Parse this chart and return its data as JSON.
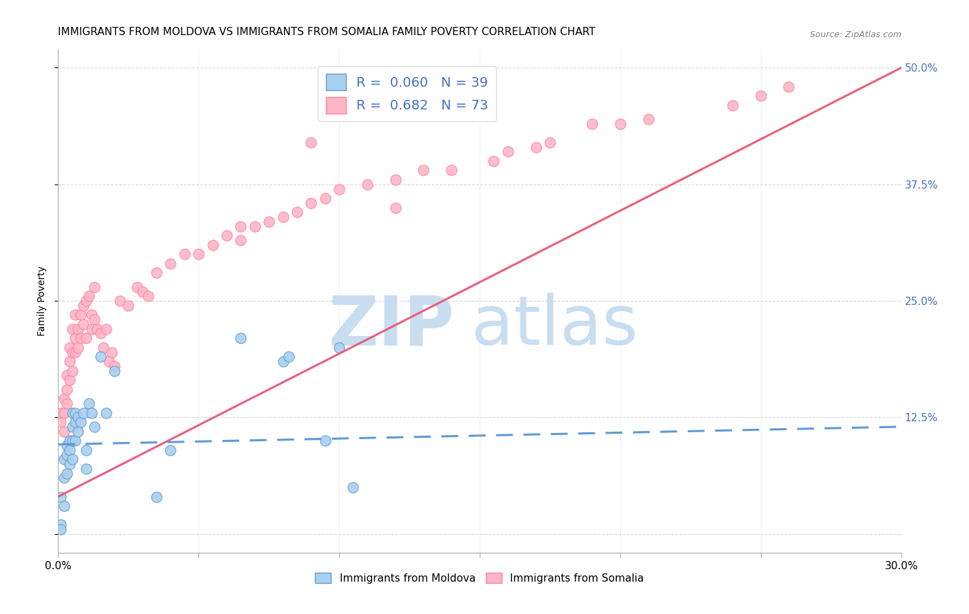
{
  "title": "IMMIGRANTS FROM MOLDOVA VS IMMIGRANTS FROM SOMALIA FAMILY POVERTY CORRELATION CHART",
  "source": "Source: ZipAtlas.com",
  "ylabel": "Family Poverty",
  "xlim": [
    0.0,
    0.3
  ],
  "ylim": [
    -0.02,
    0.52
  ],
  "yticks": [
    0.0,
    0.125,
    0.25,
    0.375,
    0.5
  ],
  "ytick_labels": [
    "",
    "12.5%",
    "25.0%",
    "37.5%",
    "50.0%"
  ],
  "xticks": [
    0.0,
    0.05,
    0.1,
    0.15,
    0.2,
    0.25,
    0.3
  ],
  "xtick_labels": [
    "0.0%",
    "",
    "",
    "",
    "",
    "",
    "30.0%"
  ],
  "moldova_color": "#A8D0F0",
  "moldova_edge_color": "#6699CC",
  "somalia_color": "#FFB6C8",
  "somalia_edge_color": "#FF8099",
  "moldova_R": 0.06,
  "moldova_N": 39,
  "somalia_R": 0.682,
  "somalia_N": 73,
  "moldova_scatter_x": [
    0.001,
    0.001,
    0.001,
    0.002,
    0.002,
    0.002,
    0.003,
    0.003,
    0.003,
    0.004,
    0.004,
    0.004,
    0.005,
    0.005,
    0.005,
    0.005,
    0.006,
    0.006,
    0.006,
    0.007,
    0.007,
    0.008,
    0.009,
    0.01,
    0.01,
    0.011,
    0.012,
    0.013,
    0.015,
    0.017,
    0.02,
    0.035,
    0.04,
    0.065,
    0.08,
    0.082,
    0.095,
    0.1,
    0.105
  ],
  "moldova_scatter_y": [
    0.04,
    0.01,
    0.005,
    0.08,
    0.06,
    0.03,
    0.095,
    0.085,
    0.065,
    0.1,
    0.09,
    0.075,
    0.13,
    0.115,
    0.1,
    0.08,
    0.13,
    0.12,
    0.1,
    0.125,
    0.11,
    0.12,
    0.13,
    0.09,
    0.07,
    0.14,
    0.13,
    0.115,
    0.19,
    0.13,
    0.175,
    0.04,
    0.09,
    0.21,
    0.185,
    0.19,
    0.1,
    0.2,
    0.05
  ],
  "somalia_scatter_x": [
    0.001,
    0.001,
    0.002,
    0.002,
    0.002,
    0.003,
    0.003,
    0.003,
    0.004,
    0.004,
    0.004,
    0.005,
    0.005,
    0.005,
    0.006,
    0.006,
    0.006,
    0.007,
    0.007,
    0.008,
    0.008,
    0.009,
    0.009,
    0.01,
    0.01,
    0.011,
    0.012,
    0.012,
    0.013,
    0.013,
    0.014,
    0.015,
    0.016,
    0.017,
    0.018,
    0.019,
    0.02,
    0.022,
    0.025,
    0.028,
    0.03,
    0.032,
    0.035,
    0.04,
    0.045,
    0.05,
    0.055,
    0.06,
    0.065,
    0.07,
    0.075,
    0.08,
    0.085,
    0.09,
    0.095,
    0.1,
    0.11,
    0.12,
    0.13,
    0.14,
    0.155,
    0.16,
    0.17,
    0.175,
    0.19,
    0.2,
    0.21,
    0.24,
    0.25,
    0.26,
    0.12,
    0.09,
    0.065
  ],
  "somalia_scatter_y": [
    0.13,
    0.12,
    0.145,
    0.13,
    0.11,
    0.17,
    0.155,
    0.14,
    0.2,
    0.185,
    0.165,
    0.22,
    0.195,
    0.175,
    0.235,
    0.21,
    0.195,
    0.22,
    0.2,
    0.235,
    0.21,
    0.245,
    0.225,
    0.25,
    0.21,
    0.255,
    0.235,
    0.22,
    0.265,
    0.23,
    0.22,
    0.215,
    0.2,
    0.22,
    0.185,
    0.195,
    0.18,
    0.25,
    0.245,
    0.265,
    0.26,
    0.255,
    0.28,
    0.29,
    0.3,
    0.3,
    0.31,
    0.32,
    0.315,
    0.33,
    0.335,
    0.34,
    0.345,
    0.355,
    0.36,
    0.37,
    0.375,
    0.38,
    0.39,
    0.39,
    0.4,
    0.41,
    0.415,
    0.42,
    0.44,
    0.44,
    0.445,
    0.46,
    0.47,
    0.48,
    0.35,
    0.42,
    0.33
  ],
  "moldova_line_x": [
    0.0,
    0.3
  ],
  "moldova_line_y": [
    0.096,
    0.115
  ],
  "somalia_line_x": [
    0.0,
    0.3
  ],
  "somalia_line_y": [
    0.04,
    0.5
  ],
  "watermark_zip": "ZIP",
  "watermark_atlas": "atlas",
  "watermark_color": "#C8DDF0",
  "title_fontsize": 11,
  "axis_label_fontsize": 10,
  "tick_fontsize": 11,
  "right_tick_color": "#4472C4",
  "bottom_label_moldova": "Immigrants from Moldova",
  "bottom_label_somalia": "Immigrants from Somalia",
  "grid_color": "#CCCCCC",
  "background_color": "#FFFFFF"
}
